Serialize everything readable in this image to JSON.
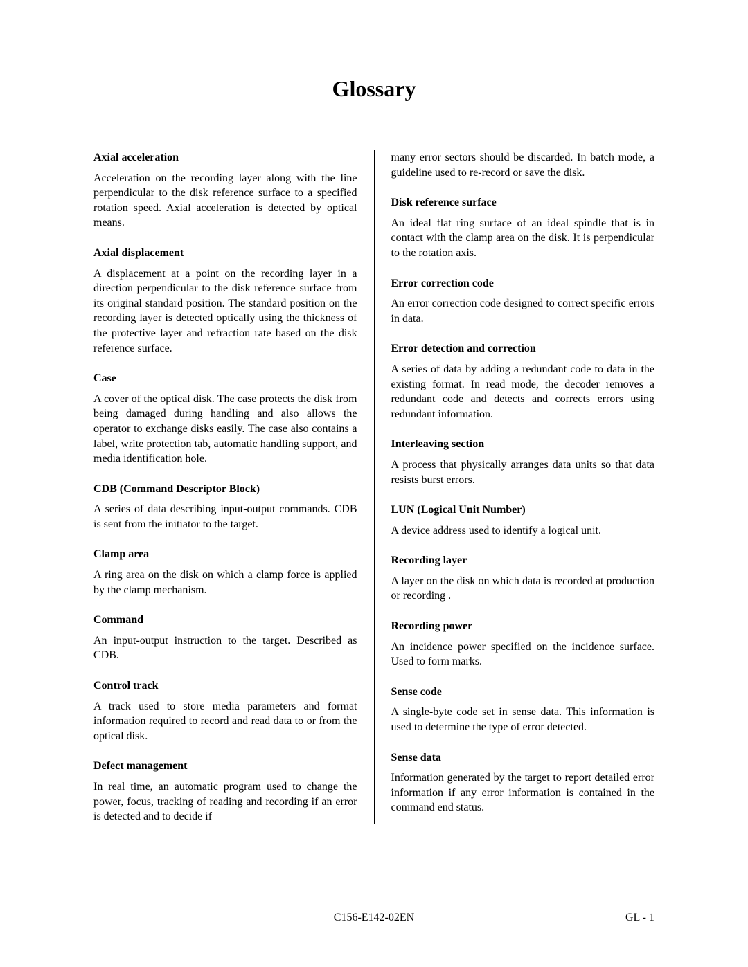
{
  "title": "Glossary",
  "left": {
    "continuation": "",
    "entries": [
      {
        "term": "Axial acceleration",
        "def": "Acceleration on the recording layer along with the line perpendicular to the disk reference surface to a specified rotation speed.  Axial acceleration is detected by optical means."
      },
      {
        "term": "Axial displacement",
        "def": "A displacement at a point on the recording layer in a direction perpendicular to the disk reference surface from its original standard position.  The standard position on the recording layer is detected optically using the thickness of the protective layer and refraction rate based on the disk reference surface."
      },
      {
        "term": "Case",
        "def": "A cover of the optical disk.  The case protects the disk from being damaged during handling and also allows the operator to exchange disks easily.  The case also contains a label, write protection tab, automatic handling support, and media identification hole."
      },
      {
        "term": "CDB (Command Descriptor Block)",
        "def": "A series of data describing input-output commands.  CDB is sent from the initiator to the target."
      },
      {
        "term": "Clamp area",
        "def": "A ring area on the disk on which a clamp force is applied by the clamp mechanism."
      },
      {
        "term": "Command",
        "def": "An input-output instruction to the target.  Described as CDB."
      },
      {
        "term": "Control track",
        "def": "A track used to store media parameters and format information required to record and read data to or from the optical disk."
      },
      {
        "term": "Defect management",
        "def": "In real time, an automatic program used to change the power, focus, tracking of reading and recording if an error is detected and to decide if"
      }
    ]
  },
  "right": {
    "continuation": "many error sectors should be discarded.  In batch mode, a guideline used to re-record or save the disk.",
    "entries": [
      {
        "term": "Disk reference surface",
        "def": "An ideal flat ring surface of an ideal spindle that is in contact with the clamp area on the disk.  It is perpendicular to the rotation axis."
      },
      {
        "term": "Error correction code",
        "def": "An error correction code designed to correct specific errors in data."
      },
      {
        "term": "Error detection and correction",
        "def": "A series of data by adding a redundant code to data in the existing format.  In read mode, the decoder removes a redundant code and detects and corrects errors using redundant information."
      },
      {
        "term": "Interleaving section",
        "def": "A process that physically arranges data units so that data resists burst errors."
      },
      {
        "term": "LUN (Logical Unit Number)",
        "def": "A device address used to identify a logical unit."
      },
      {
        "term": "Recording layer",
        "def": "A layer on the disk on which data is recorded at production or recording ."
      },
      {
        "term": "Recording power",
        "def": "An incidence power specified on the incidence surface.  Used to form marks."
      },
      {
        "term": "Sense code",
        "def": "A single-byte code set in sense data.  This information is used to determine the type of error detected."
      },
      {
        "term": "Sense data",
        "def": "Information generated by the target to report detailed error information if any error information is contained in the command end status."
      }
    ]
  },
  "footer": {
    "center": "C156-E142-02EN",
    "right": "GL - 1"
  }
}
